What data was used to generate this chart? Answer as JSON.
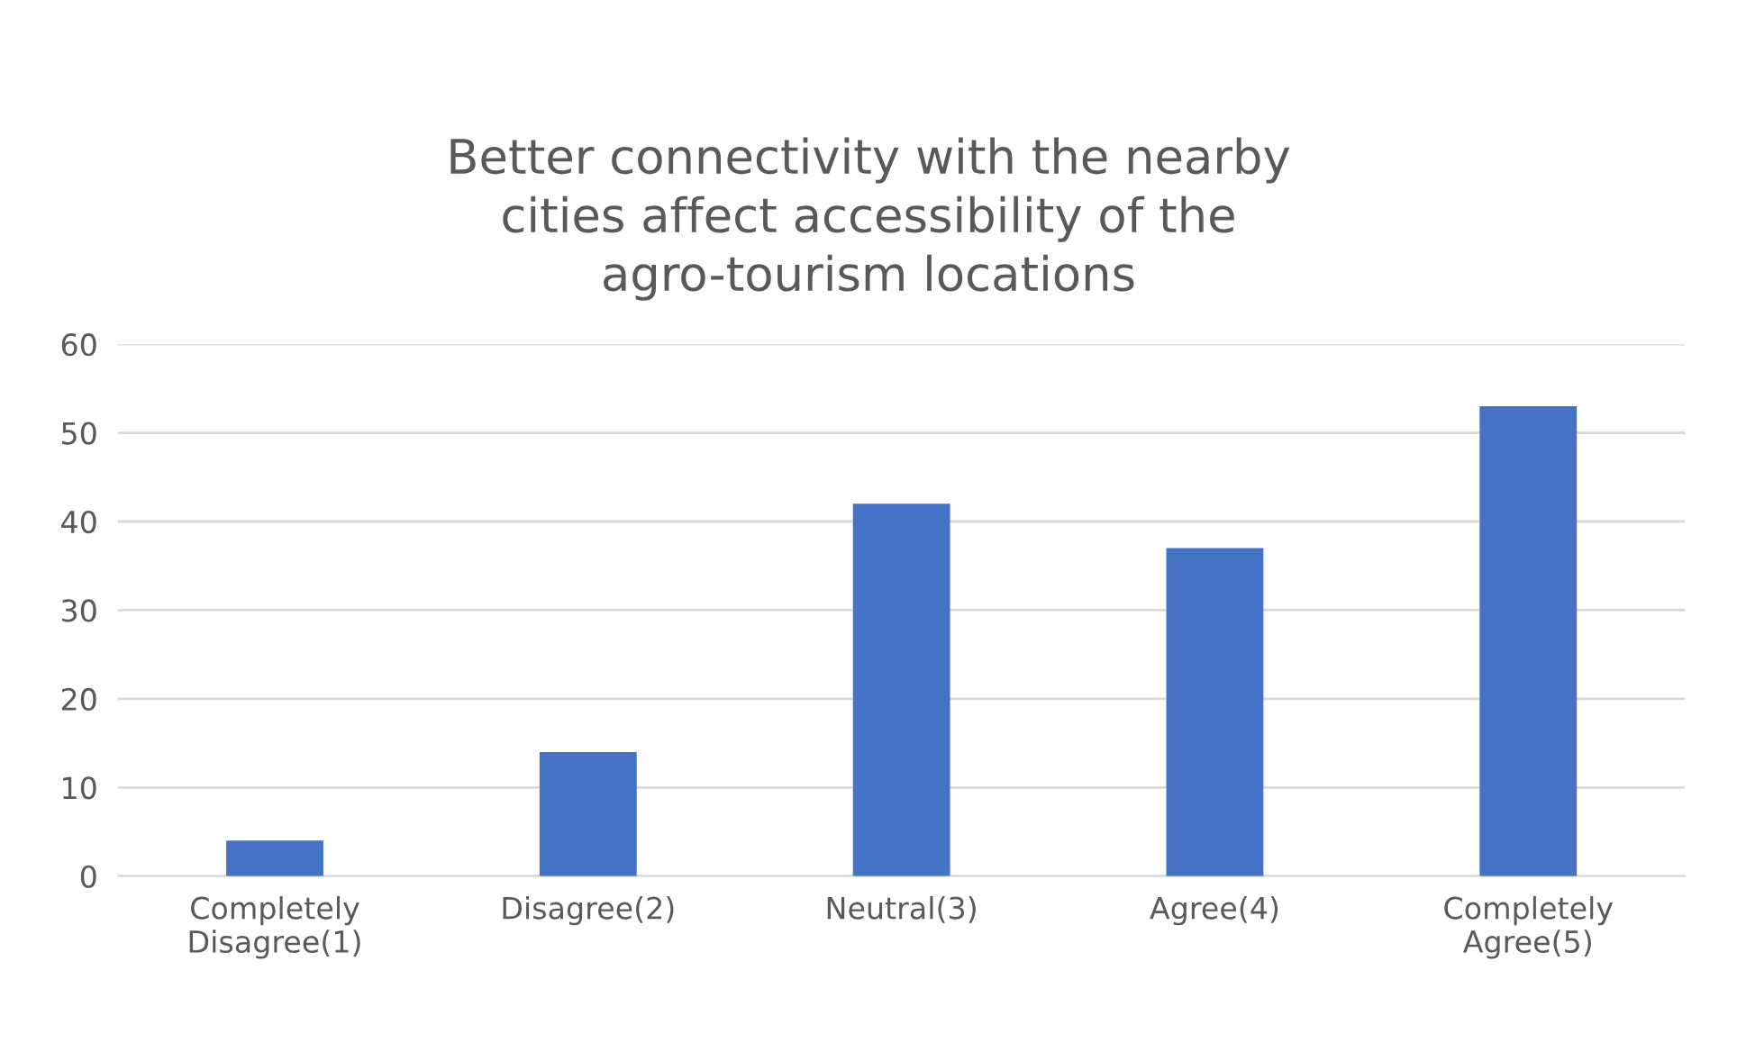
{
  "chart_data": {
    "type": "bar",
    "title": "Better connectivity with the nearby\ncities affect accessibility of the\nagro-tourism locations",
    "categories": [
      "Completely\nDisagree(1)",
      "Disagree(2)",
      "Neutral(3)",
      "Agree(4)",
      "Completely\nAgree(5)"
    ],
    "values": [
      4,
      14,
      42,
      37,
      53
    ],
    "color": "#4472c4",
    "ylim": [
      0,
      60
    ],
    "yticks": [
      0,
      10,
      20,
      30,
      40,
      50,
      60
    ],
    "grid": "y",
    "legend": false
  }
}
